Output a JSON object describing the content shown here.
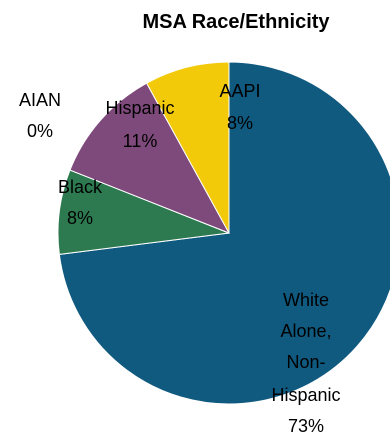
{
  "chart_data": {
    "type": "pie",
    "title": "MSA Race/Ethnicity",
    "slices": [
      {
        "label": "White Alone, Non-Hispanic",
        "value": 73,
        "value_label": "73%",
        "color": "#10597F"
      },
      {
        "label": "Black",
        "value": 8,
        "value_label": "8%",
        "color": "#2D7A51"
      },
      {
        "label": "AIAN",
        "value": 0,
        "value_label": "0%",
        "color": "#A9A9A9"
      },
      {
        "label": "Hispanic",
        "value": 11,
        "value_label": "11%",
        "color": "#7E4A7C"
      },
      {
        "label": "AAPI",
        "value": 8,
        "value_label": "8%",
        "color": "#F2CA0A"
      }
    ]
  }
}
